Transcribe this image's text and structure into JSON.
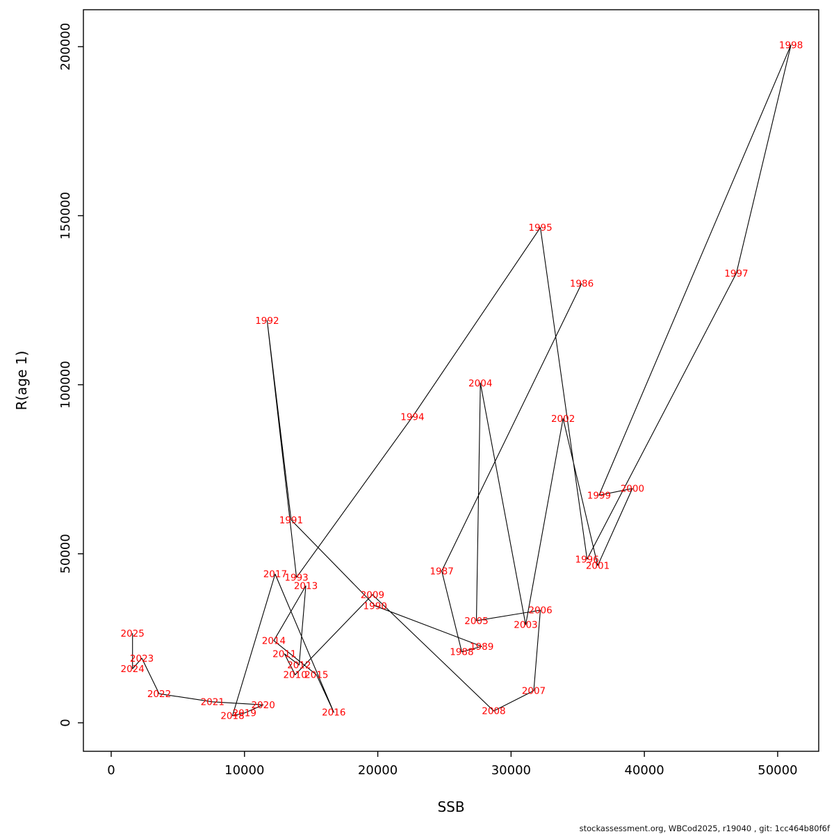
{
  "chart_data": {
    "type": "scatter",
    "title": "",
    "xlabel": "SSB",
    "ylabel": "R(age 1)",
    "legend": "none",
    "grid": false,
    "connected_by_line": true,
    "x_ticks": [
      0,
      10000,
      20000,
      30000,
      40000,
      50000
    ],
    "y_ticks": [
      0,
      50000,
      100000,
      150000,
      200000
    ],
    "xlim": [
      -2085,
      53080
    ],
    "ylim": [
      -8430,
      210930
    ],
    "label_color": "#ff0000",
    "line_color": "#000000",
    "axis_color": "#000000",
    "points": [
      {
        "year": "1986",
        "ssb": 35300,
        "r": 130000
      },
      {
        "year": "1987",
        "ssb": 24800,
        "r": 44900
      },
      {
        "year": "1988",
        "ssb": 26300,
        "r": 21000
      },
      {
        "year": "1989",
        "ssb": 27800,
        "r": 22600
      },
      {
        "year": "1990",
        "ssb": 19800,
        "r": 34600
      },
      {
        "year": "1991",
        "ssb": 13500,
        "r": 60000
      },
      {
        "year": "1992",
        "ssb": 11700,
        "r": 119000
      },
      {
        "year": "1993",
        "ssb": 13900,
        "r": 43000
      },
      {
        "year": "1994",
        "ssb": 22600,
        "r": 90500
      },
      {
        "year": "1995",
        "ssb": 32200,
        "r": 146500
      },
      {
        "year": "1996",
        "ssb": 35700,
        "r": 48400
      },
      {
        "year": "1997",
        "ssb": 46900,
        "r": 133000
      },
      {
        "year": "1998",
        "ssb": 51000,
        "r": 200500
      },
      {
        "year": "1999",
        "ssb": 36600,
        "r": 67300
      },
      {
        "year": "2000",
        "ssb": 39100,
        "r": 69300
      },
      {
        "year": "2001",
        "ssb": 36500,
        "r": 46500
      },
      {
        "year": "2002",
        "ssb": 33900,
        "r": 90000
      },
      {
        "year": "2003",
        "ssb": 31100,
        "r": 29000
      },
      {
        "year": "2004",
        "ssb": 27700,
        "r": 100500
      },
      {
        "year": "2005",
        "ssb": 27400,
        "r": 30200
      },
      {
        "year": "2006",
        "ssb": 32200,
        "r": 33300
      },
      {
        "year": "2007",
        "ssb": 31700,
        "r": 9500
      },
      {
        "year": "2008",
        "ssb": 28700,
        "r": 3500
      },
      {
        "year": "2009",
        "ssb": 19600,
        "r": 37900
      },
      {
        "year": "2010",
        "ssb": 13800,
        "r": 14200
      },
      {
        "year": "2011",
        "ssb": 13000,
        "r": 20400
      },
      {
        "year": "2012",
        "ssb": 14100,
        "r": 17100
      },
      {
        "year": "2013",
        "ssb": 14600,
        "r": 40500
      },
      {
        "year": "2014",
        "ssb": 12200,
        "r": 24300
      },
      {
        "year": "2015",
        "ssb": 15400,
        "r": 14200
      },
      {
        "year": "2016",
        "ssb": 16700,
        "r": 3100
      },
      {
        "year": "2017",
        "ssb": 12300,
        "r": 44000
      },
      {
        "year": "2018",
        "ssb": 9100,
        "r": 2100
      },
      {
        "year": "2019",
        "ssb": 10000,
        "r": 2900
      },
      {
        "year": "2020",
        "ssb": 11400,
        "r": 5300
      },
      {
        "year": "2021",
        "ssb": 7600,
        "r": 6200
      },
      {
        "year": "2022",
        "ssb": 3600,
        "r": 8600
      },
      {
        "year": "2023",
        "ssb": 2300,
        "r": 19100
      },
      {
        "year": "2024",
        "ssb": 1600,
        "r": 16000
      },
      {
        "year": "2025",
        "ssb": 1600,
        "r": 26500
      }
    ]
  },
  "footer": {
    "text": "stockassessment.org, WBCod2025, r19040 , git: 1cc464b80f6f"
  }
}
